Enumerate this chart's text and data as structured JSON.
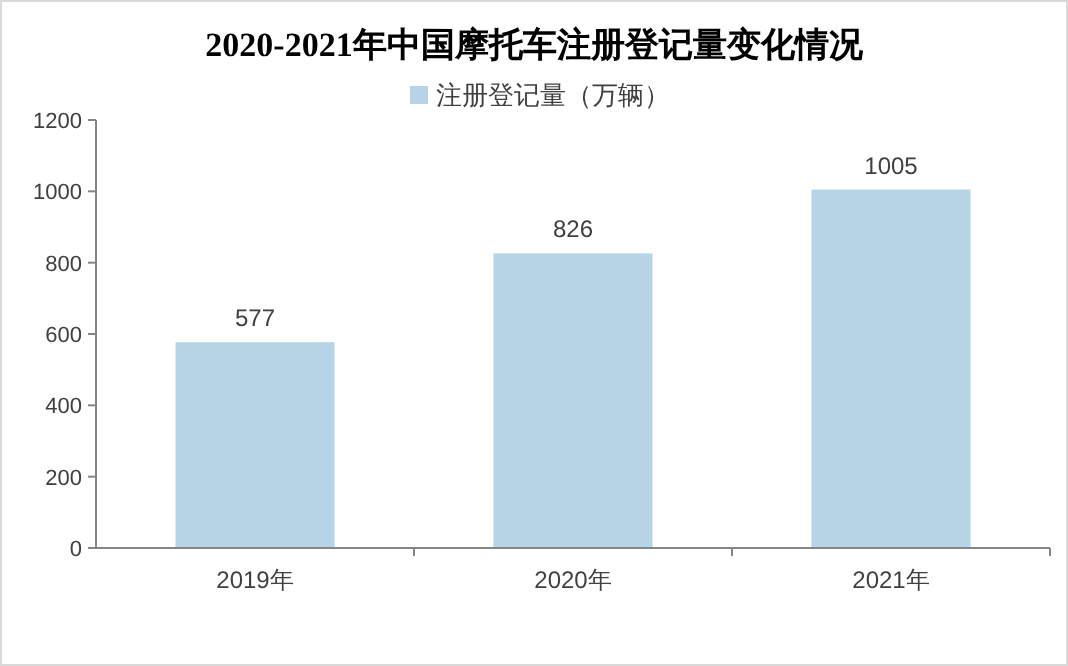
{
  "chart_data": {
    "type": "bar",
    "title": "2020-2021年中国摩托车注册登记量变化情况",
    "categories": [
      "2019年",
      "2020年",
      "2021年"
    ],
    "series": [
      {
        "name": "注册登记量（万辆）",
        "color": "#b7d3e6",
        "values": [
          577,
          826,
          1005
        ]
      }
    ],
    "ylim": [
      0,
      1200
    ],
    "yticks": [
      0,
      200,
      400,
      600,
      800,
      1000,
      1200
    ],
    "grid": false,
    "legend": "top",
    "data_labels": true
  }
}
